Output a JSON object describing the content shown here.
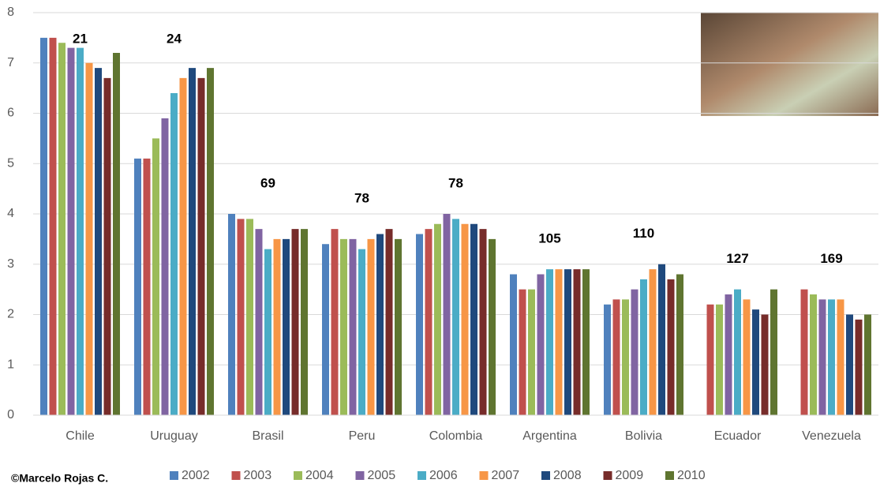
{
  "chart_data": {
    "type": "bar",
    "categories": [
      "Chile",
      "Uruguay",
      "Brasil",
      "Peru",
      "Colombia",
      "Argentina",
      "Bolivia",
      "Ecuador",
      "Venezuela"
    ],
    "series": [
      {
        "name": "2002",
        "color": "#4f81bd",
        "values": [
          7.5,
          5.1,
          4.0,
          3.4,
          3.6,
          2.8,
          2.2,
          null,
          null
        ]
      },
      {
        "name": "2003",
        "color": "#c0504d",
        "values": [
          7.5,
          5.1,
          3.9,
          3.7,
          3.7,
          2.5,
          2.3,
          2.2,
          2.5
        ]
      },
      {
        "name": "2004",
        "color": "#9bbb59",
        "values": [
          7.4,
          5.5,
          3.9,
          3.5,
          3.8,
          2.5,
          2.3,
          2.2,
          2.4
        ]
      },
      {
        "name": "2005",
        "color": "#8064a2",
        "values": [
          7.3,
          5.9,
          3.7,
          3.5,
          4.0,
          2.8,
          2.5,
          2.4,
          2.3
        ]
      },
      {
        "name": "2006",
        "color": "#4bacc6",
        "values": [
          7.3,
          6.4,
          3.3,
          3.3,
          3.9,
          2.9,
          2.7,
          2.5,
          2.3
        ]
      },
      {
        "name": "2007",
        "color": "#f79646",
        "values": [
          7.0,
          6.7,
          3.5,
          3.5,
          3.8,
          2.9,
          2.9,
          2.3,
          2.3
        ]
      },
      {
        "name": "2008",
        "color": "#1f497d",
        "values": [
          6.9,
          6.9,
          3.5,
          3.6,
          3.8,
          2.9,
          3.0,
          2.1,
          2.0
        ]
      },
      {
        "name": "2009",
        "color": "#772c2a",
        "values": [
          6.7,
          6.7,
          3.7,
          3.7,
          3.7,
          2.9,
          2.7,
          2.0,
          1.9
        ]
      },
      {
        "name": "2010",
        "color": "#5f7530",
        "values": [
          7.2,
          6.9,
          3.7,
          3.5,
          3.5,
          2.9,
          2.8,
          2.5,
          2.0
        ]
      }
    ],
    "annotations": [
      21,
      24,
      69,
      78,
      78,
      105,
      110,
      127,
      169
    ],
    "ylim": [
      0,
      8
    ],
    "yticks": [
      0,
      1,
      2,
      3,
      4,
      5,
      6,
      7,
      8
    ],
    "grid": true,
    "legend": "bottom",
    "credit": "©Marcelo Rojas C."
  }
}
